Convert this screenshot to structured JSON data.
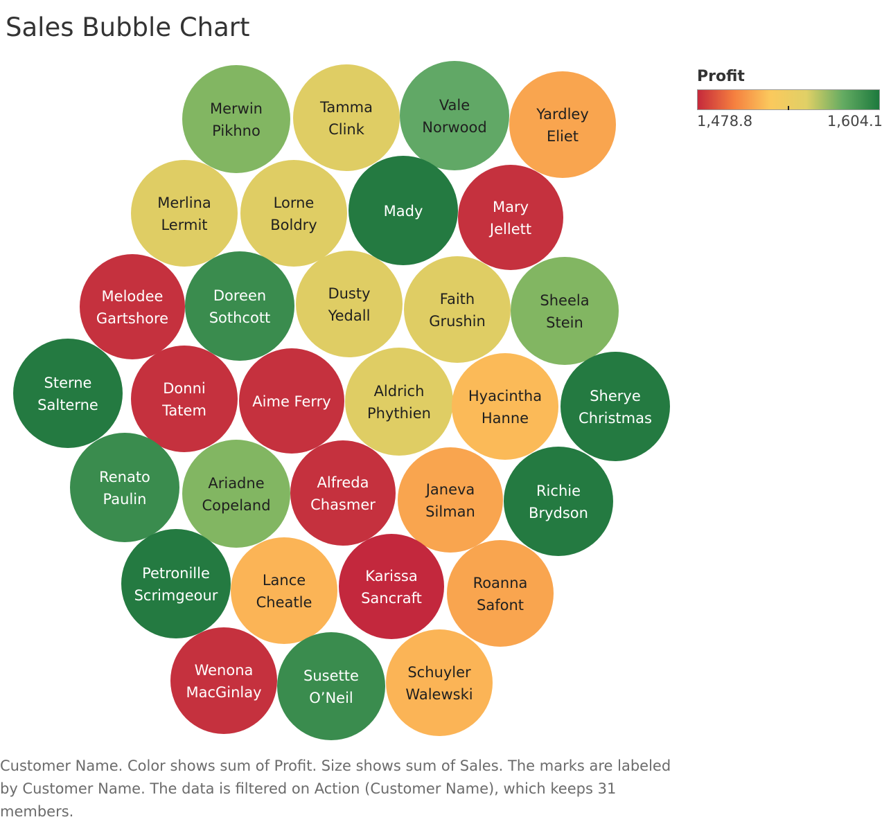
{
  "chart_data": {
    "type": "bubble",
    "title": "Sales Bubble Chart",
    "legend": {
      "title": "Profit",
      "min_label": "1,478.8",
      "max_label": "1,604.1",
      "min": 1478.8,
      "max": 1604.1,
      "placement": "top-right",
      "colors": [
        "#c5293b",
        "#f57f3f",
        "#fbc95d",
        "#e0d066",
        "#64ab62",
        "#1d7a3e"
      ]
    },
    "caption": "Customer Name.  Color shows sum of Profit.  Size shows sum of Sales.  The marks are labeled by Customer Name. The data is filtered on Action (Customer Name), which keeps 31 members.",
    "bubbles": [
      {
        "name": "Merwin Pikhno",
        "lines": [
          "Merwin",
          "Pikhno"
        ],
        "color": "#82b662",
        "text_color": "#1f1f1f"
      },
      {
        "name": "Tamma Clink",
        "lines": [
          "Tamma",
          "Clink"
        ],
        "color": "#dfcd64",
        "text_color": "#1f1f1f"
      },
      {
        "name": "Vale Norwood",
        "lines": [
          "Vale",
          "Norwood"
        ],
        "color": "#61a866",
        "text_color": "#1f1f1f"
      },
      {
        "name": "Yardley Eliet",
        "lines": [
          "Yardley",
          "Eliet"
        ],
        "color": "#f9a54f",
        "text_color": "#1f1f1f"
      },
      {
        "name": "Merlina Lermit",
        "lines": [
          "Merlina",
          "Lermit"
        ],
        "color": "#dfcd64",
        "text_color": "#1f1f1f"
      },
      {
        "name": "Lorne Boldry",
        "lines": [
          "Lorne",
          "Boldry"
        ],
        "color": "#dfcd64",
        "text_color": "#1f1f1f"
      },
      {
        "name": "Mady",
        "lines": [
          "Mady"
        ],
        "color": "#247a41",
        "text_color": "#ffffff"
      },
      {
        "name": "Mary Jellett",
        "lines": [
          "Mary",
          "Jellett"
        ],
        "color": "#c5313e",
        "text_color": "#ffffff"
      },
      {
        "name": "Melodee Gartshore",
        "lines": [
          "Melodee",
          "Gartshore"
        ],
        "color": "#c5313e",
        "text_color": "#ffffff"
      },
      {
        "name": "Doreen Sothcott",
        "lines": [
          "Doreen",
          "Sothcott"
        ],
        "color": "#3a8c4e",
        "text_color": "#ffffff"
      },
      {
        "name": "Dusty Yedall",
        "lines": [
          "Dusty",
          "Yedall"
        ],
        "color": "#dfcd64",
        "text_color": "#1f1f1f"
      },
      {
        "name": "Faith Grushin",
        "lines": [
          "Faith",
          "Grushin"
        ],
        "color": "#dfcd64",
        "text_color": "#1f1f1f"
      },
      {
        "name": "Sheela Stein",
        "lines": [
          "Sheela",
          "Stein"
        ],
        "color": "#82b662",
        "text_color": "#1f1f1f"
      },
      {
        "name": "Sterne Salterne",
        "lines": [
          "Sterne",
          "Salterne"
        ],
        "color": "#247a41",
        "text_color": "#ffffff"
      },
      {
        "name": "Donni Tatem",
        "lines": [
          "Donni",
          "Tatem"
        ],
        "color": "#c5313e",
        "text_color": "#ffffff"
      },
      {
        "name": "Aime Ferry",
        "lines": [
          "Aime Ferry"
        ],
        "color": "#c5313e",
        "text_color": "#ffffff"
      },
      {
        "name": "Aldrich Phythien",
        "lines": [
          "Aldrich",
          "Phythien"
        ],
        "color": "#dfcd64",
        "text_color": "#1f1f1f"
      },
      {
        "name": "Hyacintha Hanne",
        "lines": [
          "Hyacintha",
          "Hanne"
        ],
        "color": "#fbba58",
        "text_color": "#1f1f1f"
      },
      {
        "name": "Sherye Christmas",
        "lines": [
          "Sherye",
          "Christmas"
        ],
        "color": "#247a41",
        "text_color": "#ffffff"
      },
      {
        "name": "Renato Paulin",
        "lines": [
          "Renato",
          "Paulin"
        ],
        "color": "#3a8c4e",
        "text_color": "#ffffff"
      },
      {
        "name": "Ariadne Copeland",
        "lines": [
          "Ariadne",
          "Copeland"
        ],
        "color": "#82b662",
        "text_color": "#1f1f1f"
      },
      {
        "name": "Alfreda Chasmer",
        "lines": [
          "Alfreda",
          "Chasmer"
        ],
        "color": "#c5313e",
        "text_color": "#ffffff"
      },
      {
        "name": "Janeva Silman",
        "lines": [
          "Janeva",
          "Silman"
        ],
        "color": "#f9a54f",
        "text_color": "#1f1f1f"
      },
      {
        "name": "Richie Brydson",
        "lines": [
          "Richie",
          "Brydson"
        ],
        "color": "#247a41",
        "text_color": "#ffffff"
      },
      {
        "name": "Petronille Scrimgeour",
        "lines": [
          "Petronille",
          "Scrimgeour"
        ],
        "color": "#247a41",
        "text_color": "#ffffff"
      },
      {
        "name": "Lance Cheatle",
        "lines": [
          "Lance",
          "Cheatle"
        ],
        "color": "#fbb456",
        "text_color": "#1f1f1f"
      },
      {
        "name": "Karissa Sancraft",
        "lines": [
          "Karissa",
          "Sancraft"
        ],
        "color": "#c3283d",
        "text_color": "#ffffff"
      },
      {
        "name": "Roanna Safont",
        "lines": [
          "Roanna",
          "Safont"
        ],
        "color": "#f9a54f",
        "text_color": "#1f1f1f"
      },
      {
        "name": "Wenona MacGinlay",
        "lines": [
          "Wenona",
          "MacGinlay"
        ],
        "color": "#c5313e",
        "text_color": "#ffffff"
      },
      {
        "name": "Susette O'Neil",
        "lines": [
          "Susette",
          "O’Neil"
        ],
        "color": "#3a8c4e",
        "text_color": "#ffffff"
      },
      {
        "name": "Schuyler Walewski",
        "lines": [
          "Schuyler",
          "Walewski"
        ],
        "color": "#fbb456",
        "text_color": "#1f1f1f"
      }
    ]
  }
}
